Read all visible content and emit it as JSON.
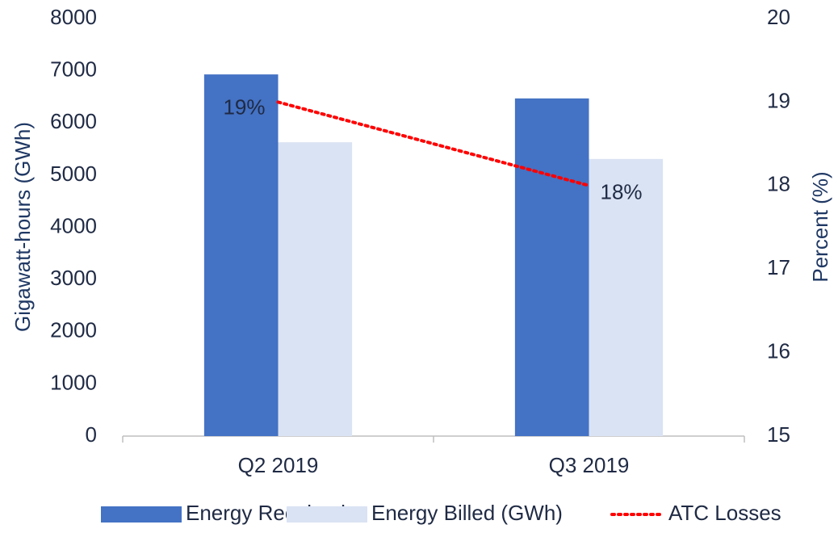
{
  "chart_data": {
    "type": "bar",
    "categories": [
      "Q2 2019",
      "Q3 2019"
    ],
    "series": [
      {
        "name": "Energy Received",
        "color": "#4472c4",
        "values": [
          6930,
          6470
        ]
      },
      {
        "name": "Energy Billed (GWh)",
        "color": "#dae3f3",
        "values": [
          5630,
          5310
        ]
      },
      {
        "name": "ATC Losses",
        "color": "#ff0000",
        "type": "line",
        "axis": "y2",
        "values": [
          19,
          18
        ],
        "value_labels": [
          "19%",
          "18%"
        ]
      }
    ],
    "ylabel": "Gigawatt-hours (GWh)",
    "y2label": "Percent (%)",
    "ylim": [
      0,
      8000
    ],
    "yticks": [
      0,
      1000,
      2000,
      3000,
      4000,
      5000,
      6000,
      7000,
      8000
    ],
    "y2lim": [
      15,
      20
    ],
    "y2ticks": [
      15,
      16,
      17,
      18,
      19,
      20
    ],
    "legend": "bottom",
    "grid": false
  }
}
